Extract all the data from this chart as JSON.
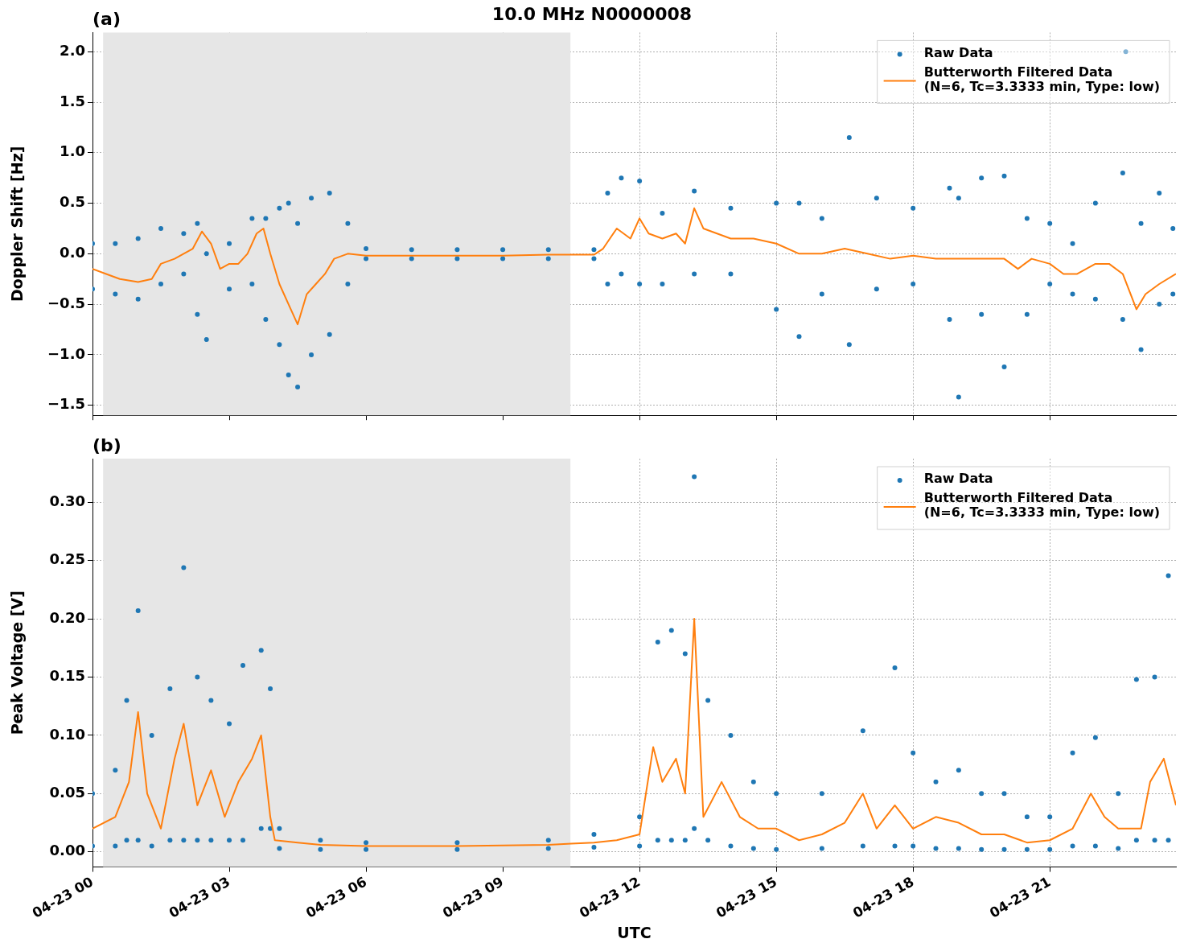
{
  "chart_data": [
    {
      "type": "scatter",
      "title": "10.0 MHz N0000008",
      "ylabel": "Doppler Shift [Hz]",
      "annotations": [
        "(a)"
      ],
      "xlim": [
        "--04-23T00:00",
        "--04-23T23:46"
      ],
      "xticks": [
        {
          "value": "--04-23T00:00",
          "label": null
        },
        {
          "value": "--04-23T03:00",
          "label": null
        },
        {
          "value": "--04-23T06:00",
          "label": null
        },
        {
          "value": "--04-23T09:00",
          "label": null
        },
        {
          "value": "--04-23T12:00",
          "label": null
        },
        {
          "value": "--04-23T15:00",
          "label": null
        },
        {
          "value": "--04-23T18:00",
          "label": null
        },
        {
          "value": "--04-23T21:00",
          "label": null
        }
      ],
      "ylim": [
        -1.6,
        2.19
      ],
      "yticks": [
        {
          "value": -1.5,
          "label": "−1.5"
        },
        {
          "value": -1,
          "label": "−1.0"
        },
        {
          "value": -0.5,
          "label": "−0.5"
        },
        {
          "value": 0,
          "label": "0.0"
        },
        {
          "value": 0.5,
          "label": "0.5"
        },
        {
          "value": 1,
          "label": "1.0"
        },
        {
          "value": 1.5,
          "label": "1.5"
        },
        {
          "value": 2,
          "label": "2.0"
        }
      ],
      "tick_labels": "y",
      "grid": true,
      "legend": "top right",
      "bands": [
        {
          "axis": "x",
          "from": "--04-23T00:14",
          "to": "--04-23T10:29",
          "color": "#e6e6e6"
        }
      ],
      "series": [
        {
          "name": "Raw Data",
          "color": "#1f77b4",
          "marker": "circle",
          "x": [
            "--04-23T00:00",
            "--04-23T00:00",
            "--04-23T00:30",
            "--04-23T00:30",
            "--04-23T01:00",
            "--04-23T01:00",
            "--04-23T01:30",
            "--04-23T01:30",
            "--04-23T02:00",
            "--04-23T02:00",
            "--04-23T02:18",
            "--04-23T02:18",
            "--04-23T02:30",
            "--04-23T02:30",
            "--04-23T03:00",
            "--04-23T03:00",
            "--04-23T03:30",
            "--04-23T03:30",
            "--04-23T03:48",
            "--04-23T03:48",
            "--04-23T04:06",
            "--04-23T04:06",
            "--04-23T04:18",
            "--04-23T04:18",
            "--04-23T04:30",
            "--04-23T04:30",
            "--04-23T04:48",
            "--04-23T04:48",
            "--04-23T05:12",
            "--04-23T05:12",
            "--04-23T05:36",
            "--04-23T05:36",
            "--04-23T06:00",
            "--04-23T06:00",
            "--04-23T07:00",
            "--04-23T07:00",
            "--04-23T08:00",
            "--04-23T08:00",
            "--04-23T09:00",
            "--04-23T09:00",
            "--04-23T10:00",
            "--04-23T10:00",
            "--04-23T11:00",
            "--04-23T11:00",
            "--04-23T11:18",
            "--04-23T11:18",
            "--04-23T11:36",
            "--04-23T11:36",
            "--04-23T12:00",
            "--04-23T12:00",
            "--04-23T12:30",
            "--04-23T12:30",
            "--04-23T13:12",
            "--04-23T13:12",
            "--04-23T14:00",
            "--04-23T14:00",
            "--04-23T15:00",
            "--04-23T15:00",
            "--04-23T15:30",
            "--04-23T15:30",
            "--04-23T16:00",
            "--04-23T16:00",
            "--04-23T16:36",
            "--04-23T16:36",
            "--04-23T17:12",
            "--04-23T17:12",
            "--04-23T18:00",
            "--04-23T18:00",
            "--04-23T18:48",
            "--04-23T18:48",
            "--04-23T19:00",
            "--04-23T19:00",
            "--04-23T19:30",
            "--04-23T19:30",
            "--04-23T20:00",
            "--04-23T20:00",
            "--04-23T20:30",
            "--04-23T20:30",
            "--04-23T21:00",
            "--04-23T21:00",
            "--04-23T21:30",
            "--04-23T21:30",
            "--04-23T22:00",
            "--04-23T22:00",
            "--04-23T22:36",
            "--04-23T22:36",
            "--04-23T22:40",
            "--04-23T23:00",
            "--04-23T23:00",
            "--04-23T23:24",
            "--04-23T23:24",
            "--04-23T23:42",
            "--04-23T23:42"
          ],
          "values": [
            0.1,
            -0.35,
            0.1,
            -0.4,
            0.15,
            -0.45,
            0.25,
            -0.3,
            0.2,
            -0.2,
            0.3,
            -0.6,
            0.0,
            -0.85,
            0.1,
            -0.35,
            0.35,
            -0.3,
            0.35,
            -0.65,
            0.45,
            -0.9,
            0.5,
            -1.2,
            0.3,
            -1.32,
            0.55,
            -1.0,
            0.6,
            -0.8,
            0.3,
            -0.3,
            0.05,
            -0.05,
            0.04,
            -0.05,
            0.04,
            -0.05,
            0.04,
            -0.05,
            0.04,
            -0.05,
            0.04,
            -0.05,
            0.6,
            -0.3,
            0.75,
            -0.2,
            0.72,
            -0.3,
            0.4,
            -0.3,
            0.62,
            -0.2,
            0.45,
            -0.2,
            0.5,
            -0.55,
            0.5,
            -0.82,
            0.35,
            -0.4,
            1.15,
            -0.9,
            0.55,
            -0.35,
            0.45,
            -0.3,
            0.65,
            -0.65,
            0.55,
            -1.42,
            0.75,
            -0.6,
            0.77,
            -1.12,
            0.35,
            -0.6,
            0.3,
            -0.3,
            0.1,
            -0.4,
            0.5,
            -0.45,
            0.8,
            -0.65,
            2.0,
            0.3,
            -0.95,
            0.6,
            -0.5,
            0.25,
            -0.4
          ]
        },
        {
          "name": "Butterworth Filtered Data\n(N=6, Tc=3.3333 min, Type: low)",
          "type": "line",
          "color": "#ff7f0e",
          "x": [
            "--04-23T00:00",
            "--04-23T00:18",
            "--04-23T00:36",
            "--04-23T01:00",
            "--04-23T01:18",
            "--04-23T01:30",
            "--04-23T01:48",
            "--04-23T02:00",
            "--04-23T02:12",
            "--04-23T02:24",
            "--04-23T02:36",
            "--04-23T02:48",
            "--04-23T03:00",
            "--04-23T03:12",
            "--04-23T03:24",
            "--04-23T03:36",
            "--04-23T03:45",
            "--04-23T03:54",
            "--04-23T04:06",
            "--04-23T04:18",
            "--04-23T04:30",
            "--04-23T04:42",
            "--04-23T04:54",
            "--04-23T05:06",
            "--04-23T05:18",
            "--04-23T05:36",
            "--04-23T06:00",
            "--04-23T07:00",
            "--04-23T08:00",
            "--04-23T09:00",
            "--04-23T10:00",
            "--04-23T11:00",
            "--04-23T11:12",
            "--04-23T11:30",
            "--04-23T11:48",
            "--04-23T12:00",
            "--04-23T12:12",
            "--04-23T12:30",
            "--04-23T12:48",
            "--04-23T13:00",
            "--04-23T13:12",
            "--04-23T13:24",
            "--04-23T13:42",
            "--04-23T14:00",
            "--04-23T14:30",
            "--04-23T15:00",
            "--04-23T15:30",
            "--04-23T16:00",
            "--04-23T16:30",
            "--04-23T17:00",
            "--04-23T17:30",
            "--04-23T18:00",
            "--04-23T18:30",
            "--04-23T19:00",
            "--04-23T19:30",
            "--04-23T20:00",
            "--04-23T20:18",
            "--04-23T20:36",
            "--04-23T21:00",
            "--04-23T21:18",
            "--04-23T21:36",
            "--04-23T22:00",
            "--04-23T22:18",
            "--04-23T22:36",
            "--04-23T22:54",
            "--04-23T23:06",
            "--04-23T23:24",
            "--04-23T23:46"
          ],
          "values": [
            -0.15,
            -0.2,
            -0.25,
            -0.28,
            -0.25,
            -0.1,
            -0.05,
            0.0,
            0.05,
            0.22,
            0.1,
            -0.15,
            -0.1,
            -0.1,
            0.0,
            0.2,
            0.25,
            0.0,
            -0.3,
            -0.5,
            -0.7,
            -0.4,
            -0.3,
            -0.2,
            -0.05,
            0.0,
            -0.02,
            -0.02,
            -0.02,
            -0.02,
            -0.01,
            -0.01,
            0.05,
            0.25,
            0.15,
            0.35,
            0.2,
            0.15,
            0.2,
            0.1,
            0.45,
            0.25,
            0.2,
            0.15,
            0.15,
            0.1,
            0.0,
            0.0,
            0.05,
            0.0,
            -0.05,
            -0.02,
            -0.05,
            -0.05,
            -0.05,
            -0.05,
            -0.15,
            -0.05,
            -0.1,
            -0.2,
            -0.2,
            -0.1,
            -0.1,
            -0.2,
            -0.55,
            -0.4,
            -0.3,
            -0.2
          ]
        }
      ]
    },
    {
      "type": "scatter",
      "xlabel": "UTC",
      "ylabel": "Peak Voltage [V]",
      "annotations": [
        "(b)"
      ],
      "xlim": [
        "--04-23T00:00",
        "--04-23T23:46"
      ],
      "xticks": [
        {
          "value": "--04-23T00:00",
          "label": "04-23 00"
        },
        {
          "value": "--04-23T03:00",
          "label": "04-23 03"
        },
        {
          "value": "--04-23T06:00",
          "label": "04-23 06"
        },
        {
          "value": "--04-23T09:00",
          "label": "04-23 09"
        },
        {
          "value": "--04-23T12:00",
          "label": "04-23 12"
        },
        {
          "value": "--04-23T15:00",
          "label": "04-23 15"
        },
        {
          "value": "--04-23T18:00",
          "label": "04-23 18"
        },
        {
          "value": "--04-23T21:00",
          "label": "04-23 21"
        }
      ],
      "ylim": [
        -0.013,
        0.3375
      ],
      "yticks": [
        {
          "value": 0,
          "label": "0.00"
        },
        {
          "value": 0.05,
          "label": "0.05"
        },
        {
          "value": 0.1,
          "label": "0.10"
        },
        {
          "value": 0.15,
          "label": "0.15"
        },
        {
          "value": 0.2,
          "label": "0.20"
        },
        {
          "value": 0.25,
          "label": "0.25"
        },
        {
          "value": 0.3,
          "label": "0.30"
        }
      ],
      "grid": true,
      "legend": "top right",
      "bands": [
        {
          "axis": "x",
          "from": "--04-23T00:14",
          "to": "--04-23T10:29",
          "color": "#e6e6e6"
        }
      ],
      "series": [
        {
          "name": "Raw Data",
          "color": "#1f77b4",
          "marker": "circle",
          "x": [
            "--04-23T00:00",
            "--04-23T00:00",
            "--04-23T00:30",
            "--04-23T00:30",
            "--04-23T00:45",
            "--04-23T00:45",
            "--04-23T01:00",
            "--04-23T01:00",
            "--04-23T01:18",
            "--04-23T01:18",
            "--04-23T01:42",
            "--04-23T01:42",
            "--04-23T02:00",
            "--04-23T02:00",
            "--04-23T02:18",
            "--04-23T02:18",
            "--04-23T02:36",
            "--04-23T02:36",
            "--04-23T03:00",
            "--04-23T03:00",
            "--04-23T03:18",
            "--04-23T03:18",
            "--04-23T03:42",
            "--04-23T03:42",
            "--04-23T03:54",
            "--04-23T03:54",
            "--04-23T04:06",
            "--04-23T04:06",
            "--04-23T05:00",
            "--04-23T05:00",
            "--04-23T06:00",
            "--04-23T06:00",
            "--04-23T08:00",
            "--04-23T08:00",
            "--04-23T10:00",
            "--04-23T10:00",
            "--04-23T11:00",
            "--04-23T11:00",
            "--04-23T12:00",
            "--04-23T12:00",
            "--04-23T12:24",
            "--04-23T12:24",
            "--04-23T12:42",
            "--04-23T12:42",
            "--04-23T13:00",
            "--04-23T13:00",
            "--04-23T13:12",
            "--04-23T13:12",
            "--04-23T13:30",
            "--04-23T13:30",
            "--04-23T14:00",
            "--04-23T14:00",
            "--04-23T14:30",
            "--04-23T14:30",
            "--04-23T15:00",
            "--04-23T15:00",
            "--04-23T16:00",
            "--04-23T16:00",
            "--04-23T16:54",
            "--04-23T16:54",
            "--04-23T17:36",
            "--04-23T17:36",
            "--04-23T18:00",
            "--04-23T18:00",
            "--04-23T18:30",
            "--04-23T18:30",
            "--04-23T19:00",
            "--04-23T19:00",
            "--04-23T19:30",
            "--04-23T19:30",
            "--04-23T20:00",
            "--04-23T20:00",
            "--04-23T20:30",
            "--04-23T20:30",
            "--04-23T21:00",
            "--04-23T21:00",
            "--04-23T21:30",
            "--04-23T21:30",
            "--04-23T22:00",
            "--04-23T22:00",
            "--04-23T22:30",
            "--04-23T22:30",
            "--04-23T22:54",
            "--04-23T22:54",
            "--04-23T23:18",
            "--04-23T23:18",
            "--04-23T23:36",
            "--04-23T23:36"
          ],
          "values": [
            0.05,
            0.005,
            0.07,
            0.005,
            0.13,
            0.01,
            0.207,
            0.01,
            0.1,
            0.005,
            0.14,
            0.01,
            0.244,
            0.01,
            0.15,
            0.01,
            0.13,
            0.01,
            0.11,
            0.01,
            0.16,
            0.01,
            0.173,
            0.02,
            0.14,
            0.02,
            0.02,
            0.003,
            0.01,
            0.002,
            0.008,
            0.002,
            0.008,
            0.002,
            0.01,
            0.003,
            0.015,
            0.004,
            0.03,
            0.005,
            0.18,
            0.01,
            0.19,
            0.01,
            0.17,
            0.01,
            0.322,
            0.02,
            0.13,
            0.01,
            0.1,
            0.005,
            0.06,
            0.003,
            0.05,
            0.002,
            0.05,
            0.003,
            0.104,
            0.005,
            0.158,
            0.005,
            0.085,
            0.005,
            0.06,
            0.003,
            0.07,
            0.003,
            0.05,
            0.002,
            0.05,
            0.002,
            0.03,
            0.002,
            0.03,
            0.002,
            0.085,
            0.005,
            0.098,
            0.005,
            0.05,
            0.003,
            0.148,
            0.01,
            0.15,
            0.01,
            0.237,
            0.01
          ]
        },
        {
          "name": "Butterworth Filtered Data\n(N=6, Tc=3.3333 min, Type: low)",
          "type": "line",
          "color": "#ff7f0e",
          "x": [
            "--04-23T00:00",
            "--04-23T00:30",
            "--04-23T00:48",
            "--04-23T01:00",
            "--04-23T01:12",
            "--04-23T01:30",
            "--04-23T01:48",
            "--04-23T02:00",
            "--04-23T02:18",
            "--04-23T02:36",
            "--04-23T02:54",
            "--04-23T03:12",
            "--04-23T03:30",
            "--04-23T03:42",
            "--04-23T03:54",
            "--04-23T04:00",
            "--04-23T04:30",
            "--04-23T05:00",
            "--04-23T06:00",
            "--04-23T08:00",
            "--04-23T10:00",
            "--04-23T10:30",
            "--04-23T11:00",
            "--04-23T11:30",
            "--04-23T12:00",
            "--04-23T12:18",
            "--04-23T12:30",
            "--04-23T12:48",
            "--04-23T13:00",
            "--04-23T13:12",
            "--04-23T13:24",
            "--04-23T13:48",
            "--04-23T14:12",
            "--04-23T14:36",
            "--04-23T15:00",
            "--04-23T15:30",
            "--04-23T16:00",
            "--04-23T16:30",
            "--04-23T16:54",
            "--04-23T17:12",
            "--04-23T17:36",
            "--04-23T18:00",
            "--04-23T18:30",
            "--04-23T19:00",
            "--04-23T19:30",
            "--04-23T20:00",
            "--04-23T20:30",
            "--04-23T21:00",
            "--04-23T21:30",
            "--04-23T21:54",
            "--04-23T22:12",
            "--04-23T22:30",
            "--04-23T23:00",
            "--04-23T23:12",
            "--04-23T23:30",
            "--04-23T23:46"
          ],
          "values": [
            0.02,
            0.03,
            0.06,
            0.12,
            0.05,
            0.02,
            0.08,
            0.11,
            0.04,
            0.07,
            0.03,
            0.06,
            0.08,
            0.1,
            0.03,
            0.01,
            0.008,
            0.006,
            0.005,
            0.005,
            0.006,
            0.007,
            0.008,
            0.01,
            0.015,
            0.09,
            0.06,
            0.08,
            0.05,
            0.2,
            0.03,
            0.06,
            0.03,
            0.02,
            0.02,
            0.01,
            0.015,
            0.025,
            0.05,
            0.02,
            0.04,
            0.02,
            0.03,
            0.025,
            0.015,
            0.015,
            0.008,
            0.01,
            0.02,
            0.05,
            0.03,
            0.02,
            0.02,
            0.06,
            0.08,
            0.04
          ]
        }
      ]
    }
  ]
}
